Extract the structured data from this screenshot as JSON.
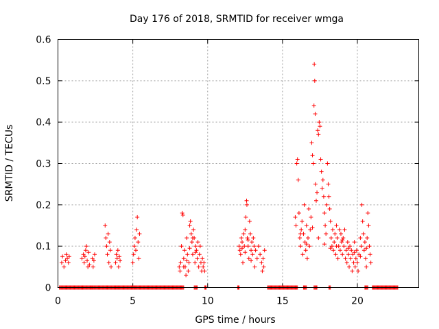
{
  "chart_data": {
    "type": "scatter",
    "title": "Day 176 of 2018, SRMTID for receiver wmga",
    "xlabel": "GPS time / hours",
    "ylabel": "SRMTID / TECUs",
    "xlim": [
      0,
      24.1
    ],
    "ylim": [
      0,
      0.6
    ],
    "xticks": [
      0,
      5,
      10,
      15,
      20
    ],
    "xtick_labels": [
      "0",
      "5",
      "10",
      "15",
      "20"
    ],
    "yticks": [
      0,
      0.1,
      0.2,
      0.3,
      0.4,
      0.5,
      0.6
    ],
    "ytick_labels": [
      "0",
      "0.1",
      "0.2",
      "0.3",
      "0.4",
      "0.5",
      "0.6"
    ],
    "grid": true,
    "marker": "+",
    "series": [
      {
        "name": "SRMTID",
        "color": "#ff0000",
        "points": [
          [
            0.25,
            0.06
          ],
          [
            0.3,
            0.075
          ],
          [
            0.4,
            0.05
          ],
          [
            0.5,
            0.065
          ],
          [
            0.55,
            0.08
          ],
          [
            0.62,
            0.07
          ],
          [
            0.7,
            0.06
          ],
          [
            0.75,
            0.075
          ],
          [
            1.6,
            0.07
          ],
          [
            1.7,
            0.08
          ],
          [
            1.75,
            0.06
          ],
          [
            1.8,
            0.075
          ],
          [
            1.85,
            0.09
          ],
          [
            1.9,
            0.1
          ],
          [
            1.95,
            0.065
          ],
          [
            2.0,
            0.05
          ],
          [
            2.05,
            0.085
          ],
          [
            2.1,
            0.055
          ],
          [
            2.3,
            0.07
          ],
          [
            2.35,
            0.05
          ],
          [
            2.4,
            0.065
          ],
          [
            2.45,
            0.08
          ],
          [
            3.15,
            0.15
          ],
          [
            3.2,
            0.12
          ],
          [
            3.25,
            0.1
          ],
          [
            3.3,
            0.08
          ],
          [
            3.35,
            0.13
          ],
          [
            3.4,
            0.06
          ],
          [
            3.45,
            0.11
          ],
          [
            3.5,
            0.09
          ],
          [
            3.55,
            0.05
          ],
          [
            3.85,
            0.06
          ],
          [
            3.9,
            0.08
          ],
          [
            3.95,
            0.07
          ],
          [
            4.0,
            0.09
          ],
          [
            4.05,
            0.05
          ],
          [
            4.1,
            0.075
          ],
          [
            4.15,
            0.065
          ],
          [
            5.0,
            0.06
          ],
          [
            5.05,
            0.08
          ],
          [
            5.1,
            0.1
          ],
          [
            5.15,
            0.12
          ],
          [
            5.2,
            0.09
          ],
          [
            5.25,
            0.14
          ],
          [
            5.3,
            0.17
          ],
          [
            5.35,
            0.11
          ],
          [
            5.4,
            0.07
          ],
          [
            5.45,
            0.13
          ],
          [
            8.1,
            0.05
          ],
          [
            8.15,
            0.04
          ],
          [
            8.2,
            0.06
          ],
          [
            8.25,
            0.1
          ],
          [
            8.3,
            0.18
          ],
          [
            8.35,
            0.175
          ],
          [
            8.4,
            0.07
          ],
          [
            8.45,
            0.09
          ],
          [
            8.5,
            0.05
          ],
          [
            8.55,
            0.03
          ],
          [
            8.6,
            0.12
          ],
          [
            8.65,
            0.08
          ],
          [
            8.7,
            0.04
          ],
          [
            8.75,
            0.06
          ],
          [
            8.8,
            0.15
          ],
          [
            8.85,
            0.16
          ],
          [
            8.9,
            0.13
          ],
          [
            8.95,
            0.11
          ],
          [
            9.0,
            0.08
          ],
          [
            9.05,
            0.14
          ],
          [
            9.1,
            0.12
          ],
          [
            9.15,
            0.06
          ],
          [
            9.2,
            0.1
          ],
          [
            9.25,
            0.09
          ],
          [
            9.3,
            0.07
          ],
          [
            9.35,
            0.11
          ],
          [
            9.4,
            0.05
          ],
          [
            9.45,
            0.08
          ],
          [
            9.5,
            0.1
          ],
          [
            9.55,
            0.06
          ],
          [
            9.6,
            0.04
          ],
          [
            9.65,
            0.07
          ],
          [
            9.7,
            0.05
          ],
          [
            9.75,
            0.06
          ],
          [
            9.8,
            0.04
          ],
          [
            8.4,
            0.05
          ],
          [
            8.6,
            0.065
          ],
          [
            8.8,
            0.095
          ],
          [
            9.0,
            0.12
          ],
          [
            9.2,
            0.085
          ],
          [
            12.1,
            0.1
          ],
          [
            12.15,
            0.09
          ],
          [
            12.2,
            0.08
          ],
          [
            12.25,
            0.12
          ],
          [
            12.3,
            0.11
          ],
          [
            12.35,
            0.06
          ],
          [
            12.4,
            0.13
          ],
          [
            12.45,
            0.1
          ],
          [
            12.5,
            0.14
          ],
          [
            12.55,
            0.17
          ],
          [
            12.6,
            0.21
          ],
          [
            12.62,
            0.2
          ],
          [
            12.65,
            0.12
          ],
          [
            12.7,
            0.1
          ],
          [
            12.75,
            0.07
          ],
          [
            12.8,
            0.16
          ],
          [
            12.85,
            0.13
          ],
          [
            12.9,
            0.09
          ],
          [
            12.95,
            0.11
          ],
          [
            13.0,
            0.08
          ],
          [
            13.05,
            0.12
          ],
          [
            13.1,
            0.1
          ],
          [
            13.15,
            0.05
          ],
          [
            13.2,
            0.09
          ],
          [
            13.3,
            0.07
          ],
          [
            13.4,
            0.1
          ],
          [
            13.5,
            0.08
          ],
          [
            13.6,
            0.06
          ],
          [
            13.65,
            0.04
          ],
          [
            13.7,
            0.07
          ],
          [
            13.75,
            0.05
          ],
          [
            13.8,
            0.09
          ],
          [
            12.3,
            0.095
          ],
          [
            12.5,
            0.085
          ],
          [
            12.7,
            0.115
          ],
          [
            12.9,
            0.065
          ],
          [
            15.85,
            0.17
          ],
          [
            15.9,
            0.15
          ],
          [
            15.95,
            0.3
          ],
          [
            16.0,
            0.31
          ],
          [
            16.05,
            0.26
          ],
          [
            16.1,
            0.18
          ],
          [
            16.15,
            0.12
          ],
          [
            16.2,
            0.1
          ],
          [
            16.25,
            0.14
          ],
          [
            16.3,
            0.16
          ],
          [
            16.35,
            0.08
          ],
          [
            16.4,
            0.13
          ],
          [
            16.45,
            0.2
          ],
          [
            16.5,
            0.11
          ],
          [
            16.55,
            0.09
          ],
          [
            16.6,
            0.15
          ],
          [
            16.65,
            0.07
          ],
          [
            16.7,
            0.12
          ],
          [
            16.75,
            0.19
          ],
          [
            16.8,
            0.1
          ],
          [
            16.85,
            0.14
          ],
          [
            16.9,
            0.17
          ],
          [
            16.95,
            0.35
          ],
          [
            17.0,
            0.32
          ],
          [
            17.05,
            0.3
          ],
          [
            17.1,
            0.44
          ],
          [
            17.12,
            0.54
          ],
          [
            17.15,
            0.5
          ],
          [
            17.18,
            0.42
          ],
          [
            17.2,
            0.25
          ],
          [
            17.25,
            0.21
          ],
          [
            17.3,
            0.23
          ],
          [
            17.35,
            0.38
          ],
          [
            17.4,
            0.37
          ],
          [
            17.45,
            0.4
          ],
          [
            17.5,
            0.39
          ],
          [
            17.55,
            0.31
          ],
          [
            17.6,
            0.28
          ],
          [
            17.65,
            0.24
          ],
          [
            17.7,
            0.26
          ],
          [
            17.75,
            0.22
          ],
          [
            17.8,
            0.18
          ],
          [
            17.85,
            0.15
          ],
          [
            17.9,
            0.13
          ],
          [
            17.95,
            0.2
          ],
          [
            18.0,
            0.3
          ],
          [
            18.05,
            0.25
          ],
          [
            18.1,
            0.22
          ],
          [
            18.15,
            0.19
          ],
          [
            18.2,
            0.16
          ],
          [
            18.25,
            0.12
          ],
          [
            18.3,
            0.1
          ],
          [
            18.35,
            0.14
          ],
          [
            18.4,
            0.09
          ],
          [
            18.45,
            0.11
          ],
          [
            18.5,
            0.13
          ],
          [
            18.55,
            0.08
          ],
          [
            18.6,
            0.15
          ],
          [
            18.65,
            0.12
          ],
          [
            18.7,
            0.07
          ],
          [
            18.75,
            0.1
          ],
          [
            18.8,
            0.14
          ],
          [
            18.85,
            0.09
          ],
          [
            18.9,
            0.13
          ],
          [
            18.95,
            0.11
          ],
          [
            19.0,
            0.08
          ],
          [
            19.05,
            0.12
          ],
          [
            19.1,
            0.1
          ],
          [
            19.15,
            0.14
          ],
          [
            19.2,
            0.07
          ],
          [
            19.25,
            0.09
          ],
          [
            19.3,
            0.06
          ],
          [
            19.35,
            0.11
          ],
          [
            19.4,
            0.08
          ],
          [
            19.45,
            0.05
          ],
          [
            19.5,
            0.1
          ],
          [
            19.55,
            0.07
          ],
          [
            19.6,
            0.09
          ],
          [
            19.65,
            0.04
          ],
          [
            19.7,
            0.08
          ],
          [
            19.75,
            0.06
          ],
          [
            19.8,
            0.11
          ],
          [
            19.85,
            0.05
          ],
          [
            19.9,
            0.07
          ],
          [
            19.95,
            0.09
          ],
          [
            20.0,
            0.06
          ],
          [
            20.05,
            0.04
          ],
          [
            20.1,
            0.08
          ],
          [
            20.2,
            0.12
          ],
          [
            20.25,
            0.1
          ],
          [
            20.3,
            0.2
          ],
          [
            20.35,
            0.16
          ],
          [
            20.4,
            0.13
          ],
          [
            20.45,
            0.09
          ],
          [
            20.5,
            0.11
          ],
          [
            20.55,
            0.07
          ],
          [
            20.6,
            0.05
          ],
          [
            20.65,
            0.12
          ],
          [
            20.7,
            0.18
          ],
          [
            20.75,
            0.15
          ],
          [
            20.8,
            0.1
          ],
          [
            20.85,
            0.08
          ],
          [
            20.9,
            0.06
          ],
          [
            16.2,
            0.13
          ],
          [
            16.6,
            0.105
          ],
          [
            17.0,
            0.145
          ],
          [
            17.4,
            0.12
          ],
          [
            17.8,
            0.105
          ],
          [
            18.2,
            0.095
          ],
          [
            18.6,
            0.1
          ],
          [
            19.0,
            0.115
          ],
          [
            19.4,
            0.095
          ],
          [
            19.8,
            0.085
          ],
          [
            20.2,
            0.075
          ],
          [
            20.6,
            0.095
          ]
        ]
      }
    ],
    "zero_segments": [
      [
        0.1,
        0.8
      ],
      [
        0.8,
        1.6
      ],
      [
        1.6,
        2.3
      ],
      [
        2.3,
        3.3
      ],
      [
        3.3,
        3.8
      ],
      [
        3.8,
        4.0
      ],
      [
        4.0,
        5.1
      ],
      [
        5.1,
        8.4
      ],
      [
        9.1,
        9.3
      ],
      [
        9.8,
        9.9
      ],
      [
        12.0,
        12.1
      ],
      [
        14.0,
        16.0
      ],
      [
        16.4,
        16.6
      ],
      [
        17.1,
        17.3
      ],
      [
        18.1,
        18.2
      ],
      [
        20.5,
        20.7
      ],
      [
        21.0,
        22.7
      ]
    ]
  }
}
